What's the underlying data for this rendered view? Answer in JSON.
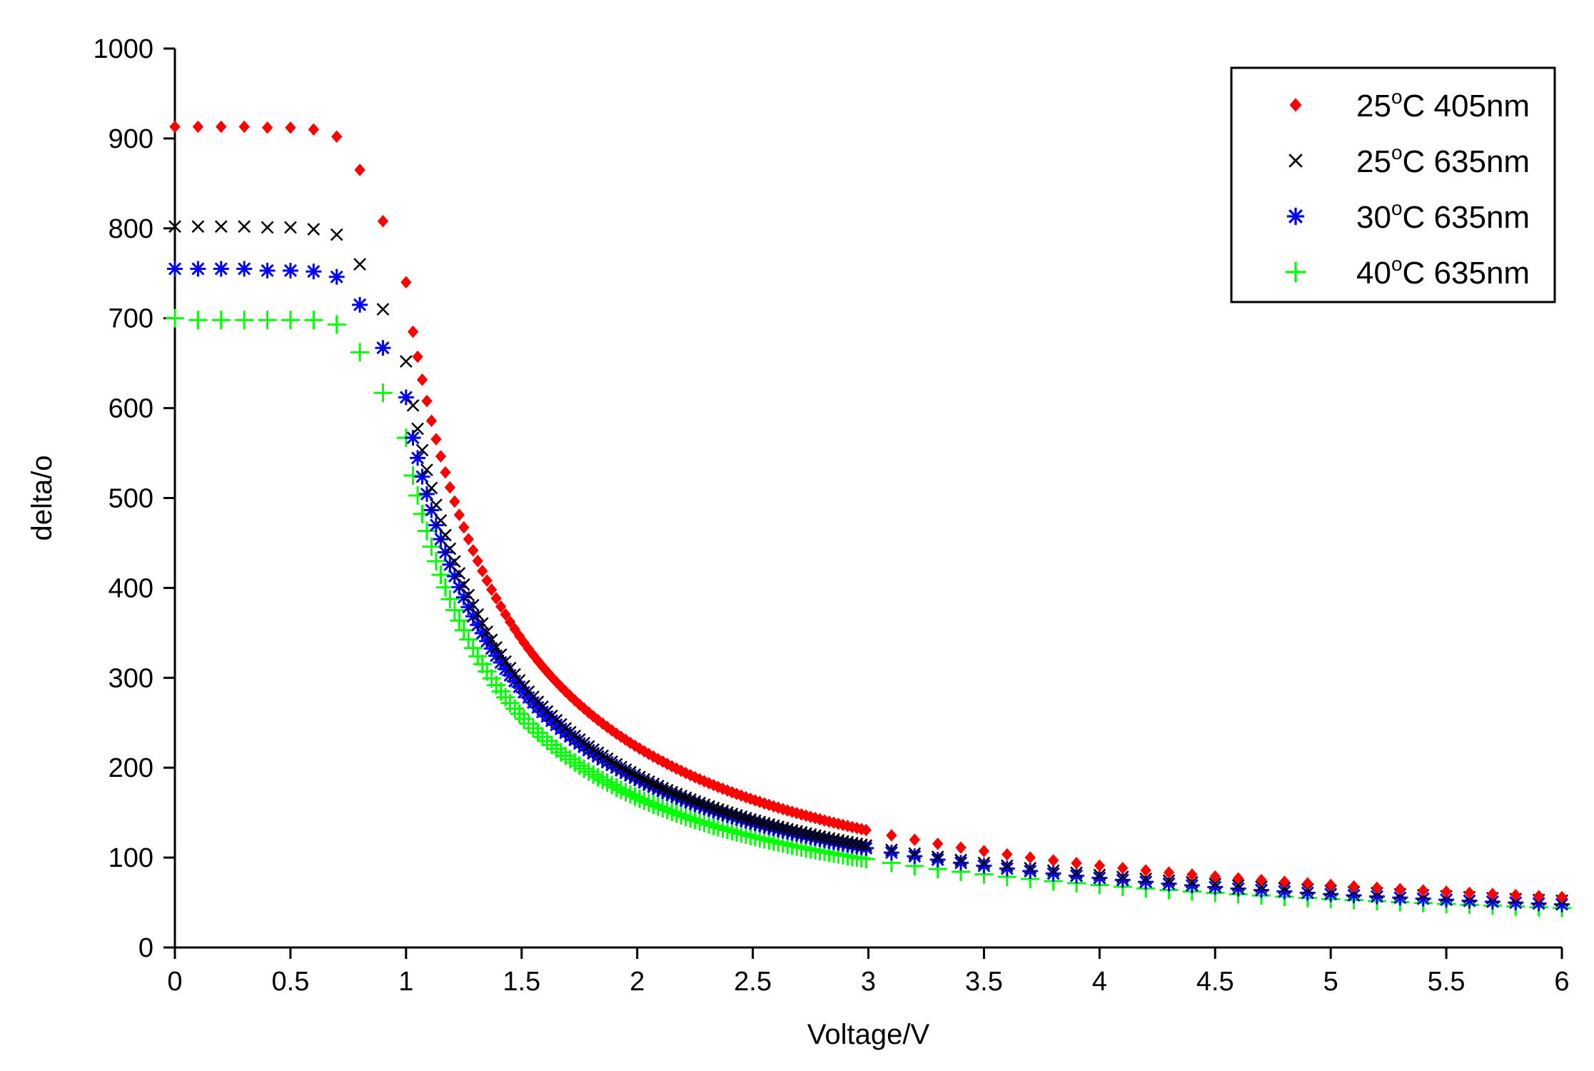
{
  "chart_data": {
    "type": "scatter",
    "title": "",
    "xlabel": "Voltage/V",
    "ylabel": "delta/o",
    "xlim": [
      0,
      6
    ],
    "ylim": [
      0,
      1000
    ],
    "x_ticks": [
      "0",
      "0.5",
      "1",
      "1.5",
      "2",
      "2.5",
      "3",
      "3.5",
      "4",
      "4.5",
      "5",
      "5.5",
      "6"
    ],
    "y_ticks": [
      "0",
      "100",
      "200",
      "300",
      "400",
      "500",
      "600",
      "700",
      "800",
      "900",
      "1000"
    ],
    "grid": false,
    "legend_position": "top-right",
    "series": [
      {
        "name": "25°C 405nm",
        "label_temp": "25",
        "label_deg": "o",
        "label_rest": "C 405nm",
        "color": "#ff0000",
        "marker": "diamond",
        "values": [
          913,
          913,
          913,
          913,
          912,
          912,
          910,
          902,
          865,
          808,
          740,
          685
        ]
      },
      {
        "name": "25°C 635nm",
        "label_temp": "25",
        "label_deg": "o",
        "label_rest": "C 635nm",
        "color": "#000000",
        "marker": "x",
        "values": [
          802,
          802,
          802,
          802,
          801,
          801,
          799,
          793,
          760,
          710,
          652,
          603
        ]
      },
      {
        "name": "30°C 635nm",
        "label_temp": "30",
        "label_deg": "o",
        "label_rest": "C 635nm",
        "color": "#0000ff",
        "marker": "asterisk",
        "values": [
          755,
          755,
          755,
          755,
          753,
          753,
          752,
          746,
          715,
          667,
          612,
          567
        ]
      },
      {
        "name": "40°C 635nm",
        "label_temp": "40",
        "label_deg": "o",
        "label_rest": "C 635nm",
        "color": "#00ff00",
        "marker": "plus",
        "values": [
          700,
          698,
          698,
          698,
          698,
          698,
          698,
          693,
          662,
          617,
          567,
          525
        ]
      }
    ],
    "x_values": [
      0,
      0.1,
      0.2,
      0.3,
      0.4,
      0.5,
      0.6,
      0.7,
      0.8,
      0.9,
      1.0,
      1.03
    ],
    "decay_region": {
      "x_start": 1.03,
      "x_dense_end": 3.0,
      "dense_step": 0.02,
      "sparse_step": 0.1,
      "x_end": 6.0,
      "values_at_x3": [
        130,
        113,
        110,
        98
      ],
      "values_at_x6": [
        56,
        52,
        48,
        44
      ]
    }
  }
}
